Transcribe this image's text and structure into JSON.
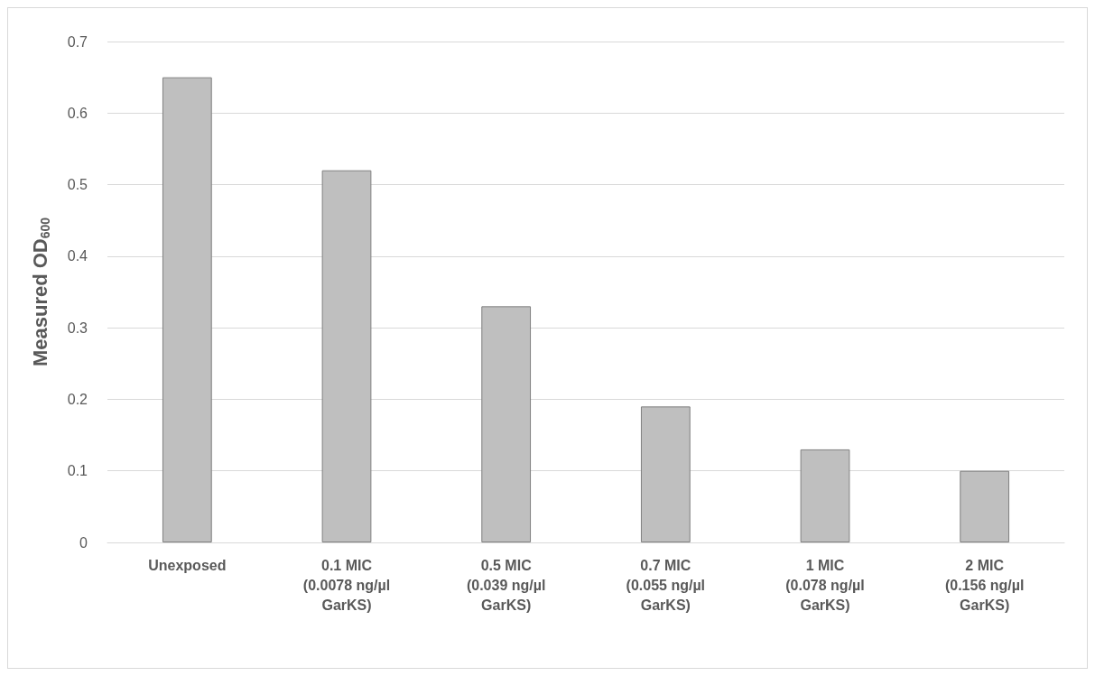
{
  "chart_data": {
    "type": "bar",
    "ylabel": "Measured OD$_{600}$",
    "categories": [
      "Unexposed",
      "0.1 MIC\n(0.0078 ng/µl\nGarKS)",
      "0.5 MIC\n(0.039 ng/µl\nGarKS)",
      "0.7 MIC\n(0.055 ng/µl\nGarKS)",
      "1 MIC\n(0.078 ng/µl\nGarKS)",
      "2 MIC\n(0.156 ng/µl\nGarKS)"
    ],
    "values": [
      0.65,
      0.52,
      0.33,
      0.19,
      0.13,
      0.1
    ],
    "color": "#bfbfbf",
    "ylim": [
      0,
      0.7
    ],
    "yticks": [
      0,
      0.1,
      0.2,
      0.3,
      0.4,
      0.5,
      0.6,
      0.7
    ],
    "grid": "y"
  }
}
